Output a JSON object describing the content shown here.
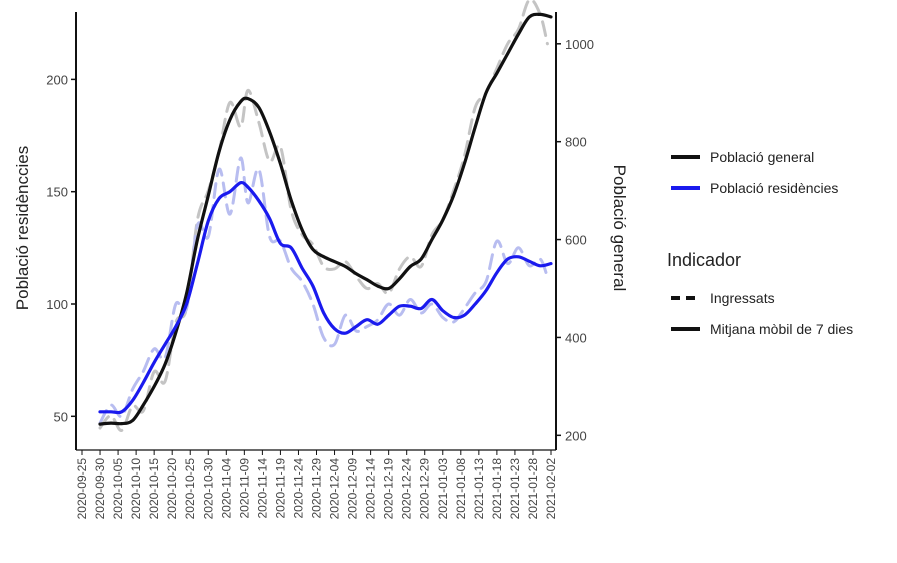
{
  "chart_data": {
    "type": "line",
    "ylabel_left": "Població residènccies",
    "ylabel_right": "Població general",
    "ylim_left": [
      35,
      230
    ],
    "ylim_right": [
      170,
      1065
    ],
    "yticks_left": [
      50,
      100,
      150,
      200
    ],
    "yticks_right": [
      200,
      400,
      600,
      800,
      1000
    ],
    "x_ticks": [
      "2020-09-25",
      "2020-09-30",
      "2020-10-05",
      "2020-10-10",
      "2020-10-15",
      "2020-10-20",
      "2020-10-25",
      "2020-10-30",
      "2020-11-04",
      "2020-11-09",
      "2020-11-14",
      "2020-11-19",
      "2020-11-24",
      "2020-11-29",
      "2020-12-04",
      "2020-12-09",
      "2020-12-14",
      "2020-12-19",
      "2020-12-24",
      "2020-12-29",
      "2021-01-03",
      "2021-01-08",
      "2021-01-13",
      "2021-01-18",
      "2021-01-23",
      "2021-01-28",
      "2021-02-02"
    ],
    "grid": false,
    "legend": {
      "series_entries": [
        {
          "label": "Població general",
          "color": "#111111"
        },
        {
          "label": "Població residències",
          "color": "#1a1aee"
        }
      ],
      "indicator_title": "Indicador",
      "indicator_entries": [
        {
          "label": "Ingressats",
          "style": "dashed"
        },
        {
          "label": "Mitjana mòbil de 7 dies",
          "style": "solid"
        }
      ],
      "placement": "right"
    },
    "series": [
      {
        "name": "Població general",
        "indicator": "Mitjana mòbil de 7 dies",
        "axis": "right",
        "color": "#111111",
        "x": [
          "2020-09-30",
          "2020-10-03",
          "2020-10-06",
          "2020-10-09",
          "2020-10-12",
          "2020-10-15",
          "2020-10-18",
          "2020-10-21",
          "2020-10-24",
          "2020-10-27",
          "2020-10-30",
          "2020-11-02",
          "2020-11-05",
          "2020-11-08",
          "2020-11-10",
          "2020-11-13",
          "2020-11-16",
          "2020-11-19",
          "2020-11-22",
          "2020-11-25",
          "2020-11-28",
          "2020-12-01",
          "2020-12-04",
          "2020-12-07",
          "2020-12-10",
          "2020-12-13",
          "2020-12-16",
          "2020-12-19",
          "2020-12-22",
          "2020-12-25",
          "2020-12-28",
          "2020-12-31",
          "2021-01-03",
          "2021-01-06",
          "2021-01-09",
          "2021-01-12",
          "2021-01-15",
          "2021-01-18",
          "2021-01-21",
          "2021-01-24",
          "2021-01-27",
          "2021-01-30",
          "2021-02-02"
        ],
        "y": [
          223,
          225,
          224,
          230,
          262,
          300,
          345,
          410,
          490,
          600,
          690,
          780,
          845,
          882,
          888,
          870,
          820,
          755,
          680,
          620,
          580,
          565,
          555,
          545,
          530,
          518,
          505,
          500,
          520,
          545,
          560,
          600,
          640,
          690,
          755,
          830,
          900,
          940,
          980,
          1020,
          1055,
          1060,
          1055
        ]
      },
      {
        "name": "Població residències",
        "indicator": "Mitjana mòbil de 7 dies",
        "axis": "left",
        "color": "#1a1aee",
        "x": [
          "2020-09-30",
          "2020-10-03",
          "2020-10-06",
          "2020-10-09",
          "2020-10-12",
          "2020-10-15",
          "2020-10-18",
          "2020-10-21",
          "2020-10-24",
          "2020-10-27",
          "2020-10-30",
          "2020-11-02",
          "2020-11-05",
          "2020-11-08",
          "2020-11-10",
          "2020-11-13",
          "2020-11-16",
          "2020-11-19",
          "2020-11-22",
          "2020-11-25",
          "2020-11-28",
          "2020-12-01",
          "2020-12-04",
          "2020-12-07",
          "2020-12-10",
          "2020-12-13",
          "2020-12-16",
          "2020-12-19",
          "2020-12-22",
          "2020-12-25",
          "2020-12-28",
          "2020-12-31",
          "2021-01-03",
          "2021-01-06",
          "2021-01-09",
          "2021-01-12",
          "2021-01-15",
          "2021-01-18",
          "2021-01-21",
          "2021-01-24",
          "2021-01-27",
          "2021-01-30",
          "2021-02-02"
        ],
        "y": [
          52,
          52,
          52,
          57,
          65,
          74,
          82,
          90,
          100,
          118,
          137,
          147,
          150,
          154,
          152,
          146,
          138,
          127,
          125,
          116,
          108,
          96,
          89,
          87,
          90,
          93,
          91,
          95,
          99,
          99,
          98,
          102,
          97,
          94,
          95,
          100,
          106,
          114,
          120,
          121,
          119,
          117,
          118
        ]
      },
      {
        "name": "Població general",
        "indicator": "Ingressats",
        "axis": "right",
        "color": "#c4c4c4",
        "x": [
          "2020-09-30",
          "2020-10-03",
          "2020-10-06",
          "2020-10-09",
          "2020-10-12",
          "2020-10-15",
          "2020-10-18",
          "2020-10-21",
          "2020-10-24",
          "2020-10-27",
          "2020-10-30",
          "2020-11-02",
          "2020-11-05",
          "2020-11-08",
          "2020-11-10",
          "2020-11-13",
          "2020-11-16",
          "2020-11-19",
          "2020-11-22",
          "2020-11-25",
          "2020-11-28",
          "2020-12-01",
          "2020-12-04",
          "2020-12-07",
          "2020-12-10",
          "2020-12-13",
          "2020-12-16",
          "2020-12-19",
          "2020-12-22",
          "2020-12-25",
          "2020-12-28",
          "2020-12-31",
          "2021-01-03",
          "2021-01-06",
          "2021-01-09",
          "2021-01-12",
          "2021-01-15",
          "2021-01-18",
          "2021-01-21",
          "2021-01-24",
          "2021-01-27",
          "2021-01-30",
          "2021-02-01"
        ],
        "y": [
          215,
          240,
          210,
          260,
          250,
          330,
          310,
          430,
          460,
          640,
          700,
          780,
          880,
          830,
          905,
          840,
          760,
          790,
          660,
          610,
          590,
          545,
          540,
          555,
          525,
          500,
          510,
          490,
          540,
          565,
          545,
          610,
          640,
          700,
          770,
          870,
          900,
          950,
          1000,
          1030,
          1090,
          1060,
          1000
        ]
      },
      {
        "name": "Població residències",
        "indicator": "Ingressats",
        "axis": "left",
        "color": "#b8bdf0",
        "x": [
          "2020-09-30",
          "2020-10-03",
          "2020-10-06",
          "2020-10-09",
          "2020-10-12",
          "2020-10-15",
          "2020-10-18",
          "2020-10-21",
          "2020-10-24",
          "2020-10-27",
          "2020-10-30",
          "2020-11-02",
          "2020-11-05",
          "2020-11-08",
          "2020-11-10",
          "2020-11-13",
          "2020-11-16",
          "2020-11-19",
          "2020-11-22",
          "2020-11-25",
          "2020-11-28",
          "2020-12-01",
          "2020-12-04",
          "2020-12-07",
          "2020-12-10",
          "2020-12-13",
          "2020-12-16",
          "2020-12-19",
          "2020-12-22",
          "2020-12-25",
          "2020-12-28",
          "2020-12-31",
          "2021-01-03",
          "2021-01-06",
          "2021-01-09",
          "2021-01-12",
          "2021-01-15",
          "2021-01-18",
          "2021-01-21",
          "2021-01-24",
          "2021-01-27",
          "2021-01-30",
          "2021-02-01"
        ],
        "y": [
          47,
          55,
          50,
          62,
          70,
          80,
          76,
          100,
          98,
          135,
          130,
          160,
          140,
          165,
          145,
          160,
          130,
          128,
          116,
          110,
          100,
          85,
          82,
          95,
          88,
          90,
          93,
          100,
          95,
          102,
          96,
          100,
          94,
          92,
          98,
          105,
          110,
          128,
          118,
          125,
          117,
          120,
          112
        ]
      }
    ]
  }
}
